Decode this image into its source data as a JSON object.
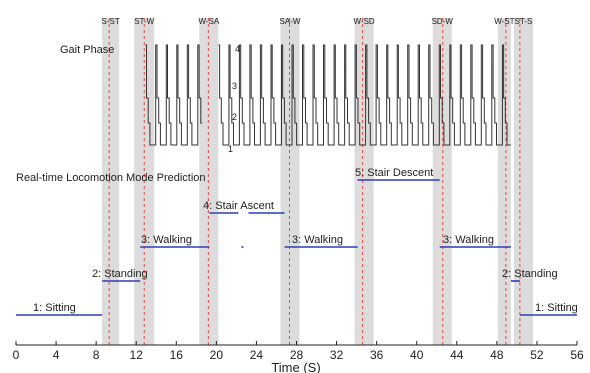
{
  "chart_data": {
    "type": "line",
    "title": "",
    "xlabel": "Time (S)",
    "ylabel": "",
    "xlim": [
      0,
      56
    ],
    "x_ticks": [
      0,
      4,
      8,
      12,
      16,
      20,
      24,
      28,
      32,
      36,
      40,
      44,
      48,
      52,
      56
    ],
    "gait_phase": {
      "label": "Gait Phase",
      "levels": [
        1,
        2,
        3,
        4
      ],
      "level_labels": [
        "1",
        "2",
        "3",
        "4"
      ],
      "active_intervals": [
        [
          12.9,
          18.6
        ],
        [
          20.2,
          49.4
        ]
      ],
      "cycle_period_s": 1.05
    },
    "mode_panel_label": "Real-time Locomotion Mode Prediction",
    "modes": [
      {
        "level": 1,
        "label": "1: Sitting",
        "intervals": [
          [
            0,
            8.6
          ],
          [
            50.3,
            56
          ]
        ]
      },
      {
        "level": 2,
        "label": "2: Standing",
        "intervals": [
          [
            8.6,
            12.4
          ],
          [
            49.4,
            50.3
          ]
        ]
      },
      {
        "level": 3,
        "label": "3: Walking",
        "intervals": [
          [
            12.4,
            19.3
          ],
          [
            22.5,
            22.7
          ],
          [
            26.8,
            34.1
          ],
          [
            42.3,
            49.4
          ]
        ]
      },
      {
        "level": 4,
        "label": "4: Stair Ascent",
        "intervals": [
          [
            19.3,
            22.2
          ],
          [
            23.2,
            26.8
          ]
        ]
      },
      {
        "level": 5,
        "label": "5: Stair Descent",
        "intervals": [
          [
            34.1,
            42.3
          ]
        ]
      }
    ],
    "transitions": [
      {
        "label": "S-ST",
        "band": [
          8.6,
          10.3
        ],
        "marker": 9.3
      },
      {
        "label": "ST-W",
        "band": [
          11.8,
          13.8
        ],
        "marker": 12.8
      },
      {
        "label": "W-SA",
        "band": [
          18.3,
          20.2
        ],
        "marker": 19.2
      },
      {
        "label": "SA-W",
        "band": [
          26.4,
          28.3
        ],
        "marker": 27.3
      },
      {
        "label": "W-SD",
        "band": [
          33.8,
          35.7
        ],
        "marker": 34.6
      },
      {
        "label": "SD-W",
        "band": [
          41.6,
          43.5
        ],
        "marker": 42.6
      },
      {
        "label": "W-ST",
        "band": [
          48.1,
          49.4
        ],
        "marker": 48.9
      },
      {
        "label": "ST-S",
        "band": [
          49.7,
          51.6
        ],
        "marker": 50.3
      }
    ],
    "colors": {
      "band": "#dcdcdc",
      "marker": "#e04848",
      "mode_line": "#2b3fb8",
      "gait_line": "#333333",
      "axis": "#222222"
    },
    "grid": false,
    "legend": "none"
  }
}
